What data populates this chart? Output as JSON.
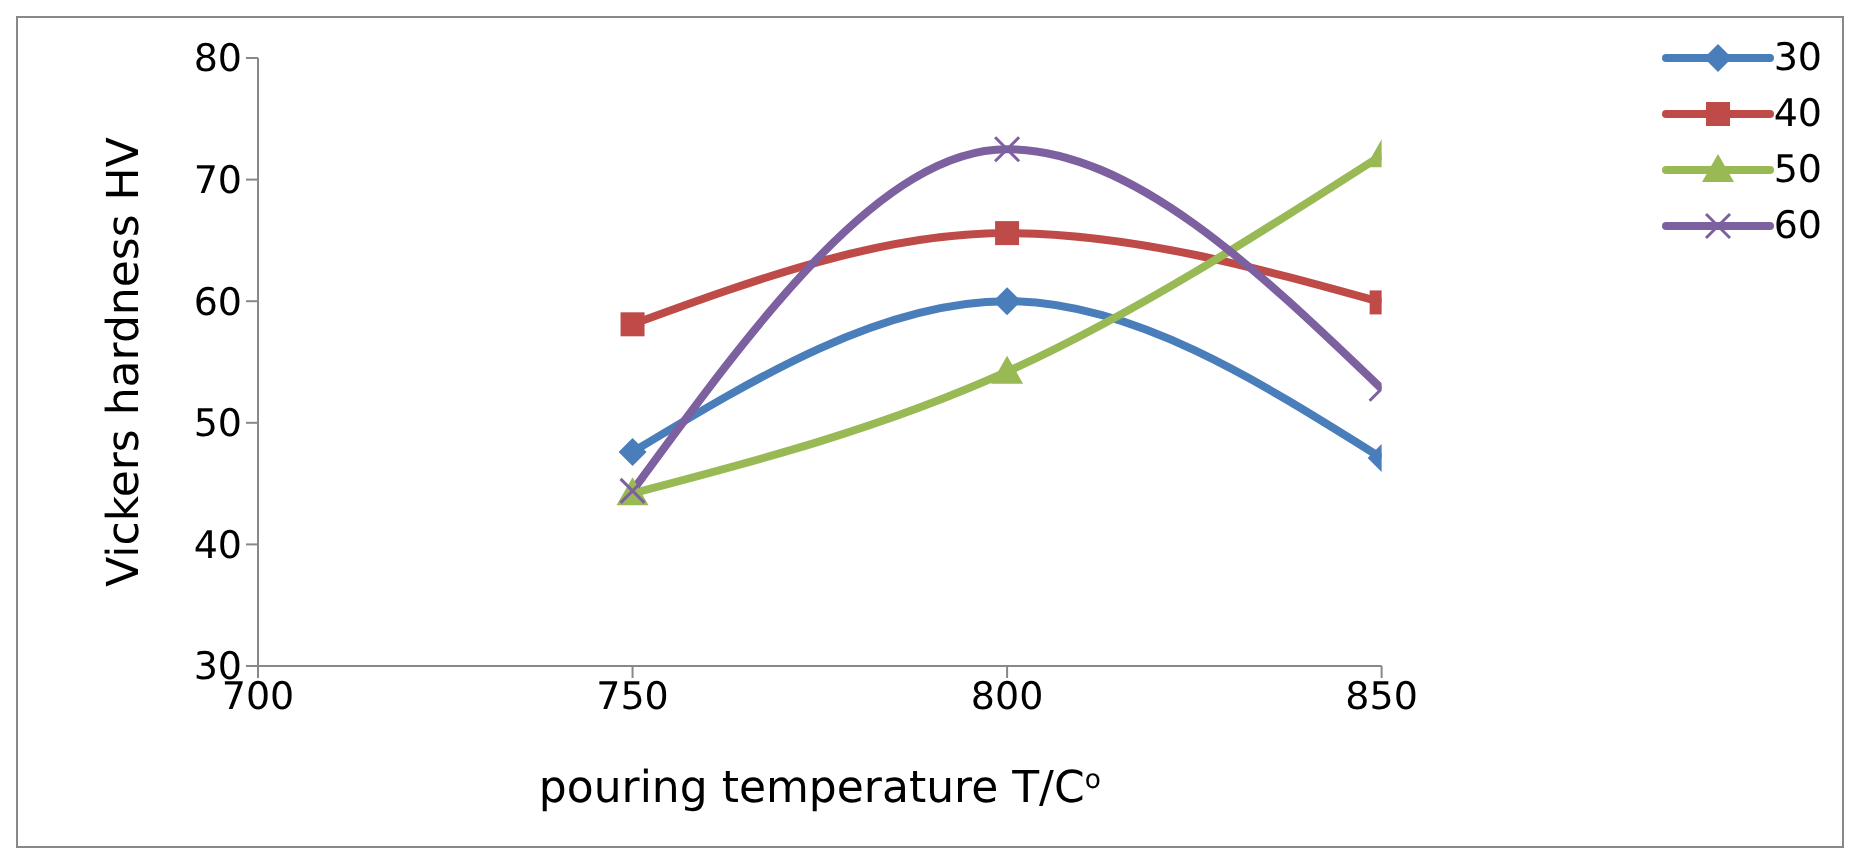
{
  "chart_data": {
    "type": "line",
    "xlabel": "pouring temperature T/C$^{o}$",
    "ylabel": "Vickers hardness HV",
    "x": [
      750,
      800,
      850
    ],
    "xlim": [
      700,
      850
    ],
    "xticks": [
      700,
      750,
      800,
      850
    ],
    "ylim": [
      30,
      80
    ],
    "yticks": [
      30,
      40,
      50,
      60,
      70,
      80
    ],
    "grid": false,
    "legend": "top right",
    "series": [
      {
        "name": "30",
        "color": "#4a7ebb",
        "marker": "diamond",
        "values": [
          47.6,
          60,
          47.1
        ]
      },
      {
        "name": "40",
        "color": "#be4b48",
        "marker": "square",
        "values": [
          58.1,
          65.6,
          59.9
        ]
      },
      {
        "name": "50",
        "color": "#98b954",
        "marker": "triangle",
        "values": [
          44.2,
          54.2,
          72
        ]
      },
      {
        "name": "60",
        "color": "#7d60a0",
        "marker": "cross",
        "values": [
          44.4,
          72.5,
          52.8
        ]
      }
    ]
  }
}
